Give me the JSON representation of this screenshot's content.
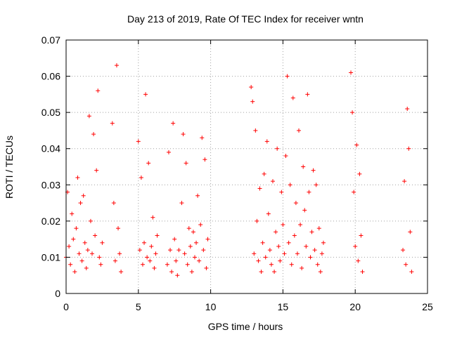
{
  "chart_data": {
    "type": "scatter",
    "title": "Day 213 of 2019, Rate Of TEC Index for receiver wntn",
    "xlabel": "GPS time / hours",
    "ylabel": "ROTI / TECUs",
    "xlim": [
      0,
      25
    ],
    "ylim": [
      0,
      0.07
    ],
    "x_ticks": [
      0,
      5,
      10,
      15,
      20,
      25
    ],
    "x_tick_labels": [
      "0",
      "5",
      "10",
      "15",
      "20",
      "25"
    ],
    "y_ticks": [
      0,
      0.01,
      0.02,
      0.03,
      0.04,
      0.05,
      0.06,
      0.07
    ],
    "y_tick_labels": [
      "0",
      "0.01",
      "0.02",
      "0.03",
      "0.04",
      "0.05",
      "0.06",
      "0.07"
    ],
    "grid": true,
    "marker": "+",
    "colors": {
      "series": "#ff0000",
      "grid": "#a0a0a0",
      "axes": "#000000"
    },
    "series": [
      {
        "name": "ROTI",
        "x": [
          0.0,
          0.1,
          0.2,
          0.3,
          0.4,
          0.5,
          0.6,
          0.7,
          0.8,
          0.9,
          1.0,
          1.1,
          1.2,
          1.3,
          1.4,
          1.5,
          1.6,
          1.7,
          1.8,
          1.9,
          2.0,
          2.1,
          2.2,
          2.3,
          2.4,
          2.5,
          3.2,
          3.3,
          3.4,
          3.5,
          3.6,
          3.7,
          3.8,
          5.0,
          5.1,
          5.2,
          5.3,
          5.4,
          5.5,
          5.6,
          5.7,
          5.8,
          5.9,
          6.0,
          6.1,
          6.2,
          6.3,
          7.0,
          7.1,
          7.2,
          7.3,
          7.4,
          7.5,
          7.6,
          7.7,
          7.8,
          8.0,
          8.1,
          8.2,
          8.3,
          8.4,
          8.5,
          8.6,
          8.7,
          8.8,
          8.9,
          9.0,
          9.1,
          9.2,
          9.3,
          9.4,
          9.5,
          9.6,
          9.7,
          9.8,
          12.8,
          12.9,
          13.0,
          13.1,
          13.2,
          13.3,
          13.4,
          13.5,
          13.6,
          13.7,
          13.8,
          13.9,
          14.0,
          14.1,
          14.2,
          14.3,
          14.4,
          14.5,
          14.6,
          14.7,
          14.8,
          14.9,
          15.0,
          15.1,
          15.2,
          15.3,
          15.4,
          15.5,
          15.6,
          15.7,
          15.8,
          15.9,
          16.0,
          16.1,
          16.2,
          16.3,
          16.4,
          16.5,
          16.6,
          16.7,
          16.8,
          16.9,
          17.0,
          17.1,
          17.2,
          17.3,
          17.4,
          17.5,
          17.6,
          17.7,
          17.8,
          19.7,
          19.8,
          19.9,
          20.0,
          20.1,
          20.2,
          20.3,
          20.4,
          20.5,
          23.3,
          23.4,
          23.5,
          23.6,
          23.7,
          23.8,
          23.9
        ],
        "y": [
          0.01,
          0.028,
          0.013,
          0.008,
          0.022,
          0.015,
          0.006,
          0.018,
          0.032,
          0.011,
          0.025,
          0.009,
          0.027,
          0.014,
          0.007,
          0.012,
          0.049,
          0.02,
          0.011,
          0.044,
          0.016,
          0.034,
          0.056,
          0.01,
          0.008,
          0.014,
          0.047,
          0.025,
          0.009,
          0.063,
          0.018,
          0.011,
          0.006,
          0.042,
          0.012,
          0.032,
          0.008,
          0.014,
          0.055,
          0.01,
          0.036,
          0.009,
          0.013,
          0.021,
          0.007,
          0.011,
          0.016,
          0.008,
          0.039,
          0.012,
          0.006,
          0.047,
          0.015,
          0.009,
          0.005,
          0.012,
          0.025,
          0.044,
          0.011,
          0.036,
          0.008,
          0.018,
          0.013,
          0.006,
          0.017,
          0.01,
          0.014,
          0.027,
          0.009,
          0.019,
          0.043,
          0.012,
          0.037,
          0.007,
          0.015,
          0.057,
          0.053,
          0.011,
          0.045,
          0.02,
          0.009,
          0.029,
          0.006,
          0.014,
          0.033,
          0.01,
          0.042,
          0.022,
          0.012,
          0.008,
          0.031,
          0.006,
          0.017,
          0.04,
          0.013,
          0.009,
          0.028,
          0.019,
          0.011,
          0.038,
          0.06,
          0.014,
          0.03,
          0.008,
          0.054,
          0.016,
          0.025,
          0.011,
          0.045,
          0.019,
          0.007,
          0.035,
          0.023,
          0.013,
          0.055,
          0.028,
          0.01,
          0.017,
          0.034,
          0.012,
          0.03,
          0.008,
          0.018,
          0.006,
          0.011,
          0.014,
          0.061,
          0.05,
          0.028,
          0.013,
          0.041,
          0.009,
          0.033,
          0.016,
          0.006,
          0.012,
          0.031,
          0.008,
          0.051,
          0.04,
          0.017,
          0.006
        ]
      }
    ]
  }
}
